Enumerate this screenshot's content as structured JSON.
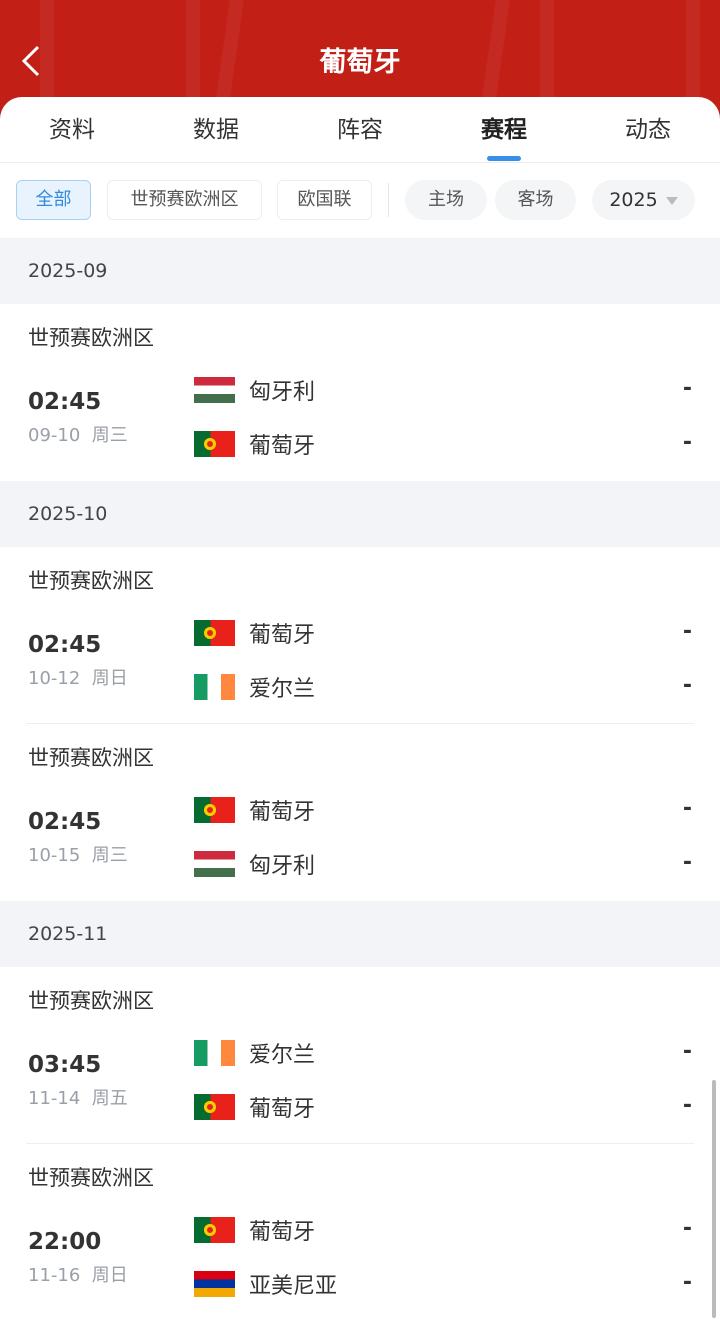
{
  "header": {
    "title": "葡萄牙",
    "back_icon": "chevron-left-icon",
    "bg_color": "#c21f17"
  },
  "tabs": [
    {
      "label": "资料"
    },
    {
      "label": "数据"
    },
    {
      "label": "阵容"
    },
    {
      "label": "赛程",
      "active": true
    },
    {
      "label": "动态"
    }
  ],
  "filters": {
    "competition": [
      "全部",
      "世预赛欧洲区",
      "欧国联"
    ],
    "venue": [
      "主场",
      "客场"
    ],
    "year": "2025"
  },
  "months": [
    {
      "label": "2025-09",
      "matches": [
        {
          "competition": "世预赛欧洲区",
          "time": "02:45",
          "date": "09-10",
          "weekday": "周三",
          "home": {
            "name": "匈牙利",
            "flag": "hu"
          },
          "away": {
            "name": "葡萄牙",
            "flag": "pt"
          },
          "home_score": "-",
          "away_score": "-"
        }
      ]
    },
    {
      "label": "2025-10",
      "matches": [
        {
          "competition": "世预赛欧洲区",
          "time": "02:45",
          "date": "10-12",
          "weekday": "周日",
          "home": {
            "name": "葡萄牙",
            "flag": "pt"
          },
          "away": {
            "name": "爱尔兰",
            "flag": "ie"
          },
          "home_score": "-",
          "away_score": "-"
        },
        {
          "competition": "世预赛欧洲区",
          "time": "02:45",
          "date": "10-15",
          "weekday": "周三",
          "home": {
            "name": "葡萄牙",
            "flag": "pt"
          },
          "away": {
            "name": "匈牙利",
            "flag": "hu"
          },
          "home_score": "-",
          "away_score": "-"
        }
      ]
    },
    {
      "label": "2025-11",
      "matches": [
        {
          "competition": "世预赛欧洲区",
          "time": "03:45",
          "date": "11-14",
          "weekday": "周五",
          "home": {
            "name": "爱尔兰",
            "flag": "ie"
          },
          "away": {
            "name": "葡萄牙",
            "flag": "pt"
          },
          "home_score": "-",
          "away_score": "-"
        },
        {
          "competition": "世预赛欧洲区",
          "time": "22:00",
          "date": "11-16",
          "weekday": "周日",
          "home": {
            "name": "葡萄牙",
            "flag": "pt"
          },
          "away": {
            "name": "亚美尼亚",
            "flag": "am"
          },
          "home_score": "-",
          "away_score": "-"
        }
      ]
    }
  ]
}
